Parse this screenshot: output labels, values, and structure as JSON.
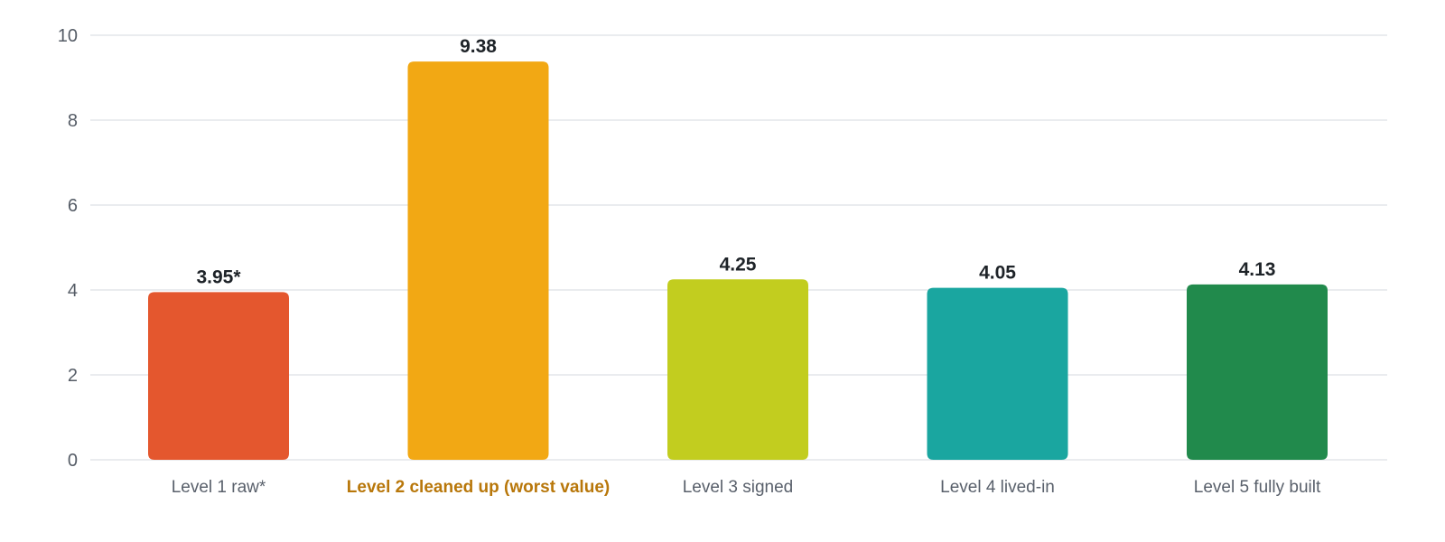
{
  "chart_data": {
    "type": "bar",
    "title": "",
    "xlabel": "",
    "ylabel": "",
    "ylim": [
      0,
      10
    ],
    "yticks": [
      0,
      2,
      4,
      6,
      8,
      10
    ],
    "grid": true,
    "legend": "none",
    "categories": [
      "Level 1 raw*",
      "Level 2 cleaned up (worst value)",
      "Level 3 signed",
      "Level 4 lived-in",
      "Level 5 fully built"
    ],
    "values": [
      3.95,
      9.38,
      4.25,
      4.05,
      4.13
    ],
    "value_labels": [
      "3.95*",
      "9.38",
      "4.25",
      "4.05",
      "4.13"
    ],
    "colors": [
      "#e4572e",
      "#f2a814",
      "#c2cd1f",
      "#1aa6a0",
      "#218a4c"
    ],
    "highlight_index": 1,
    "highlight_label_color": "#b8770a"
  }
}
